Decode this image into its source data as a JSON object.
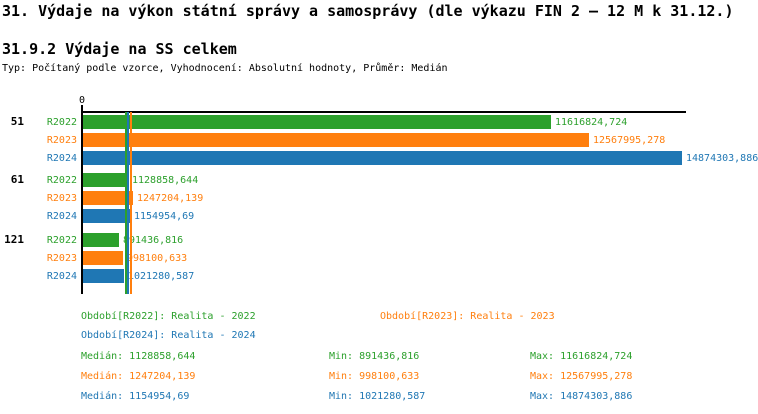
{
  "page": {
    "title": "31. Výdaje na výkon státní správy a samosprávy (dle výkazu FIN 2 – 12 M k 31.12.)",
    "subtitle": "31.9.2 Výdaje na SS celkem",
    "meta": "Typ: Počítaný podle vzorce, Vyhodnocení: Absolutní hodnoty, Průměr: Medián"
  },
  "colors": {
    "green": "#2CA02C",
    "orange": "#FF7F0E",
    "blue": "#1F77B4",
    "axis": "#000000",
    "background": "#FFFFFF"
  },
  "chart_data": {
    "type": "bar",
    "orientation": "horizontal",
    "grouped": true,
    "title": "31.9.2 Výdaje na SS celkem",
    "x_zero_tick": "0",
    "xlim": [
      0,
      14874303.886
    ],
    "grid": false,
    "legend_position": "bottom",
    "categories": [
      "51",
      "61",
      "121"
    ],
    "series": [
      {
        "name": "R2022",
        "period": "Realita - 2022",
        "color": "#2CA02C",
        "values": [
          11616824.724,
          1128858.644,
          891436.816
        ],
        "value_labels": [
          "11616824,724",
          "1128858,644",
          "891436,816"
        ]
      },
      {
        "name": "R2023",
        "period": "Realita - 2023",
        "color": "#FF7F0E",
        "values": [
          12567995.278,
          1247204.139,
          998100.633
        ],
        "value_labels": [
          "12567995,278",
          "1247204,139",
          "998100,633"
        ]
      },
      {
        "name": "R2024",
        "period": "Realita - 2024",
        "color": "#1F77B4",
        "values": [
          14874303.886,
          1154954.69,
          1021280.587
        ],
        "value_labels": [
          "14874303,886",
          "1154954,69",
          "1021280,587"
        ]
      }
    ],
    "median_markers": [
      {
        "series": "R2022",
        "value": 1128858.644,
        "color": "#2CA02C"
      },
      {
        "series": "R2023",
        "value": 1247204.139,
        "color": "#FF7F0E"
      },
      {
        "series": "R2024",
        "value": 1154954.69,
        "color": "#1F77B4"
      }
    ]
  },
  "legend": {
    "periods": [
      {
        "label": "Období[R2022]: Realita - 2022",
        "color_key": "green"
      },
      {
        "label": "Období[R2023]: Realita - 2023",
        "color_key": "orange"
      },
      {
        "label": "Období[R2024]: Realita - 2024",
        "color_key": "blue"
      }
    ],
    "stats": [
      {
        "median": "Medián: 1128858,644",
        "min": "Min: 891436,816",
        "max": "Max: 11616824,724",
        "color_key": "green"
      },
      {
        "median": "Medián: 1247204,139",
        "min": "Min: 998100,633",
        "max": "Max: 12567995,278",
        "color_key": "orange"
      },
      {
        "median": "Medián: 1154954,69",
        "min": "Min: 1021280,587",
        "max": "Max: 14874303,886",
        "color_key": "blue"
      }
    ]
  }
}
